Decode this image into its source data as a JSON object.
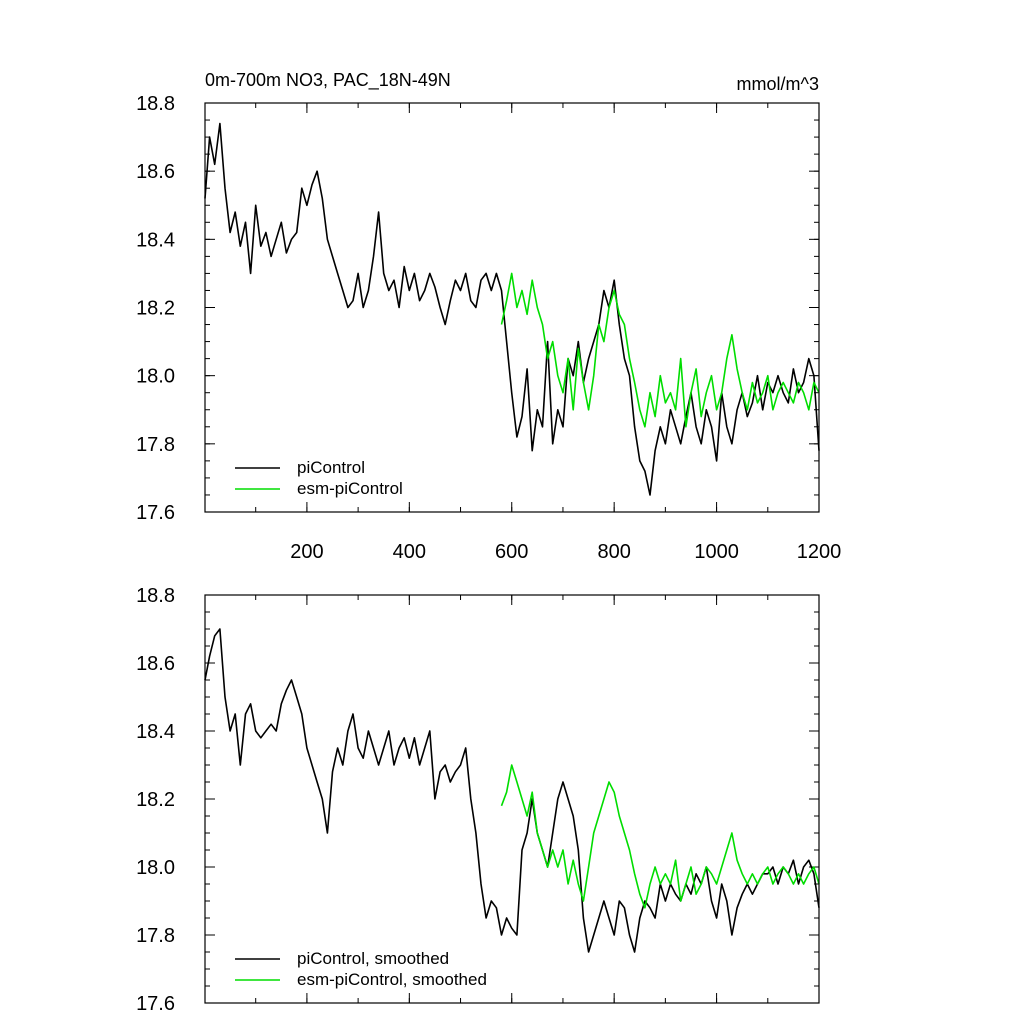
{
  "chart_data": [
    {
      "type": "line",
      "title": "0m-700m NO3, PAC_18N-49N",
      "units": "mmol/m^3",
      "xlim": [
        1,
        1200
      ],
      "ylim": [
        17.6,
        18.8
      ],
      "xticks": [
        200,
        400,
        600,
        800,
        1000,
        1200
      ],
      "xtick_labels": [
        "200",
        "400",
        "600",
        "800",
        "1000",
        "1200"
      ],
      "yticks": [
        17.6,
        17.8,
        18.0,
        18.2,
        18.4,
        18.6,
        18.8
      ],
      "ytick_labels": [
        "17.6",
        "17.8",
        "18.0",
        "18.2",
        "18.4",
        "18.6",
        "18.8"
      ],
      "grid": false,
      "legend_position": "bottom-left",
      "series": [
        {
          "name": "piControl",
          "color": "#000000",
          "x": [
            1,
            10,
            20,
            30,
            40,
            50,
            60,
            70,
            80,
            90,
            100,
            110,
            120,
            130,
            140,
            150,
            160,
            170,
            180,
            190,
            200,
            210,
            220,
            230,
            240,
            250,
            260,
            270,
            280,
            290,
            300,
            310,
            320,
            330,
            340,
            350,
            360,
            370,
            380,
            390,
            400,
            410,
            420,
            430,
            440,
            450,
            460,
            470,
            480,
            490,
            500,
            510,
            520,
            530,
            540,
            550,
            560,
            570,
            580,
            590,
            600,
            610,
            620,
            630,
            640,
            650,
            660,
            670,
            680,
            690,
            700,
            710,
            720,
            730,
            740,
            750,
            760,
            770,
            780,
            790,
            800,
            810,
            820,
            830,
            840,
            850,
            860,
            870,
            880,
            890,
            900,
            910,
            920,
            930,
            940,
            950,
            960,
            970,
            980,
            990,
            1000,
            1010,
            1020,
            1030,
            1040,
            1050,
            1060,
            1070,
            1080,
            1090,
            1100,
            1110,
            1120,
            1130,
            1140,
            1150,
            1160,
            1170,
            1180,
            1190,
            1200
          ],
          "values": [
            18.52,
            18.7,
            18.62,
            18.74,
            18.55,
            18.42,
            18.48,
            18.38,
            18.45,
            18.3,
            18.5,
            18.38,
            18.42,
            18.35,
            18.4,
            18.45,
            18.36,
            18.4,
            18.42,
            18.55,
            18.5,
            18.56,
            18.6,
            18.52,
            18.4,
            18.35,
            18.3,
            18.25,
            18.2,
            18.22,
            18.3,
            18.2,
            18.25,
            18.35,
            18.48,
            18.3,
            18.25,
            18.28,
            18.2,
            18.32,
            18.25,
            18.3,
            18.22,
            18.25,
            18.3,
            18.26,
            18.2,
            18.15,
            18.22,
            18.28,
            18.25,
            18.3,
            18.22,
            18.2,
            18.28,
            18.3,
            18.25,
            18.3,
            18.25,
            18.1,
            17.95,
            17.82,
            17.88,
            18.02,
            17.78,
            17.9,
            17.85,
            18.1,
            17.8,
            17.9,
            17.85,
            18.05,
            18.0,
            18.1,
            17.98,
            18.05,
            18.1,
            18.15,
            18.25,
            18.2,
            18.28,
            18.15,
            18.05,
            18.0,
            17.85,
            17.75,
            17.72,
            17.65,
            17.78,
            17.85,
            17.8,
            17.9,
            17.85,
            17.8,
            17.88,
            17.95,
            17.85,
            17.8,
            17.9,
            17.85,
            17.75,
            17.95,
            17.85,
            17.8,
            17.9,
            17.95,
            17.88,
            17.92,
            18.0,
            17.9,
            17.98,
            17.95,
            18.0,
            17.95,
            17.92,
            18.02,
            17.95,
            17.98,
            18.05,
            18.0,
            17.78
          ]
        },
        {
          "name": "esm-piControl",
          "color": "#00dd00",
          "x": [
            580,
            590,
            600,
            610,
            620,
            630,
            640,
            650,
            660,
            670,
            680,
            690,
            700,
            710,
            720,
            730,
            740,
            750,
            760,
            770,
            780,
            790,
            800,
            810,
            820,
            830,
            840,
            850,
            860,
            870,
            880,
            890,
            900,
            910,
            920,
            930,
            940,
            950,
            960,
            970,
            980,
            990,
            1000,
            1010,
            1020,
            1030,
            1040,
            1050,
            1060,
            1070,
            1080,
            1090,
            1100,
            1110,
            1120,
            1130,
            1140,
            1150,
            1160,
            1170,
            1180,
            1190,
            1200
          ],
          "values": [
            18.15,
            18.22,
            18.3,
            18.2,
            18.25,
            18.18,
            18.28,
            18.2,
            18.15,
            18.05,
            18.1,
            18.0,
            17.95,
            18.05,
            17.9,
            18.08,
            17.98,
            17.9,
            18.0,
            18.15,
            18.1,
            18.2,
            18.25,
            18.18,
            18.15,
            18.05,
            17.98,
            17.9,
            17.85,
            17.95,
            17.88,
            18.0,
            17.92,
            17.95,
            17.9,
            18.05,
            17.85,
            17.95,
            18.02,
            17.88,
            17.95,
            18.0,
            17.9,
            17.95,
            18.05,
            18.12,
            18.02,
            17.95,
            17.9,
            17.98,
            17.92,
            17.95,
            18.0,
            17.9,
            17.95,
            17.98,
            17.95,
            17.92,
            17.98,
            17.95,
            17.9,
            17.98,
            17.95
          ]
        }
      ]
    },
    {
      "type": "line",
      "title": "",
      "units": "",
      "xlim": [
        1,
        1200
      ],
      "ylim": [
        17.6,
        18.8
      ],
      "xticks": [
        200,
        400,
        600,
        800,
        1000,
        1200
      ],
      "xtick_labels": [],
      "yticks": [
        17.6,
        17.8,
        18.0,
        18.2,
        18.4,
        18.6,
        18.8
      ],
      "ytick_labels": [
        "17.6",
        "17.8",
        "18.0",
        "18.2",
        "18.4",
        "18.6",
        "18.8"
      ],
      "grid": false,
      "legend_position": "bottom-left",
      "series": [
        {
          "name": "piControl, smoothed",
          "color": "#000000",
          "x": [
            1,
            10,
            20,
            30,
            40,
            50,
            60,
            70,
            80,
            90,
            100,
            110,
            120,
            130,
            140,
            150,
            160,
            170,
            180,
            190,
            200,
            210,
            220,
            230,
            240,
            250,
            260,
            270,
            280,
            290,
            300,
            310,
            320,
            330,
            340,
            350,
            360,
            370,
            380,
            390,
            400,
            410,
            420,
            430,
            440,
            450,
            460,
            470,
            480,
            490,
            500,
            510,
            520,
            530,
            540,
            550,
            560,
            570,
            580,
            590,
            600,
            610,
            620,
            630,
            640,
            650,
            660,
            670,
            680,
            690,
            700,
            710,
            720,
            730,
            740,
            750,
            760,
            770,
            780,
            790,
            800,
            810,
            820,
            830,
            840,
            850,
            860,
            870,
            880,
            890,
            900,
            910,
            920,
            930,
            940,
            950,
            960,
            970,
            980,
            990,
            1000,
            1010,
            1020,
            1030,
            1040,
            1050,
            1060,
            1070,
            1080,
            1090,
            1100,
            1110,
            1120,
            1130,
            1140,
            1150,
            1160,
            1170,
            1180,
            1190,
            1200
          ],
          "values": [
            18.55,
            18.62,
            18.68,
            18.7,
            18.5,
            18.4,
            18.45,
            18.3,
            18.45,
            18.48,
            18.4,
            18.38,
            18.4,
            18.42,
            18.4,
            18.48,
            18.52,
            18.55,
            18.5,
            18.45,
            18.35,
            18.3,
            18.25,
            18.2,
            18.1,
            18.28,
            18.35,
            18.3,
            18.4,
            18.45,
            18.35,
            18.32,
            18.4,
            18.35,
            18.3,
            18.35,
            18.4,
            18.3,
            18.35,
            18.38,
            18.32,
            18.38,
            18.3,
            18.35,
            18.4,
            18.2,
            18.28,
            18.3,
            18.25,
            18.28,
            18.3,
            18.35,
            18.2,
            18.1,
            17.95,
            17.85,
            17.9,
            17.88,
            17.8,
            17.85,
            17.82,
            17.8,
            18.05,
            18.1,
            18.2,
            18.1,
            18.05,
            18.0,
            18.1,
            18.2,
            18.25,
            18.2,
            18.15,
            18.05,
            17.85,
            17.75,
            17.8,
            17.85,
            17.9,
            17.85,
            17.8,
            17.9,
            17.88,
            17.8,
            17.75,
            17.85,
            17.9,
            17.88,
            17.85,
            17.95,
            17.9,
            17.95,
            17.92,
            17.9,
            17.95,
            17.92,
            17.98,
            17.95,
            18.0,
            17.9,
            17.85,
            17.95,
            17.9,
            17.8,
            17.88,
            17.92,
            17.95,
            17.92,
            17.95,
            17.98,
            17.98,
            18.0,
            17.95,
            18.0,
            17.98,
            18.02,
            17.95,
            18.0,
            18.02,
            17.98,
            17.88
          ]
        },
        {
          "name": "esm-piControl, smoothed",
          "color": "#00dd00",
          "x": [
            580,
            590,
            600,
            610,
            620,
            630,
            640,
            650,
            660,
            670,
            680,
            690,
            700,
            710,
            720,
            730,
            740,
            750,
            760,
            770,
            780,
            790,
            800,
            810,
            820,
            830,
            840,
            850,
            860,
            870,
            880,
            890,
            900,
            910,
            920,
            930,
            940,
            950,
            960,
            970,
            980,
            990,
            1000,
            1010,
            1020,
            1030,
            1040,
            1050,
            1060,
            1070,
            1080,
            1090,
            1100,
            1110,
            1120,
            1130,
            1140,
            1150,
            1160,
            1170,
            1180,
            1190,
            1200
          ],
          "values": [
            18.18,
            18.22,
            18.3,
            18.25,
            18.2,
            18.15,
            18.22,
            18.1,
            18.05,
            18.0,
            18.05,
            18.0,
            18.05,
            17.95,
            18.02,
            17.95,
            17.9,
            18.0,
            18.1,
            18.15,
            18.2,
            18.25,
            18.22,
            18.15,
            18.1,
            18.05,
            17.98,
            17.92,
            17.88,
            17.95,
            18.0,
            17.95,
            17.98,
            17.95,
            18.02,
            17.9,
            17.95,
            18.0,
            17.92,
            17.95,
            18.0,
            17.98,
            17.95,
            18.0,
            18.05,
            18.1,
            18.02,
            17.98,
            17.95,
            17.98,
            17.95,
            17.98,
            18.0,
            17.95,
            17.98,
            18.0,
            17.98,
            17.95,
            17.98,
            17.95,
            17.98,
            18.0,
            17.95
          ]
        }
      ]
    }
  ]
}
